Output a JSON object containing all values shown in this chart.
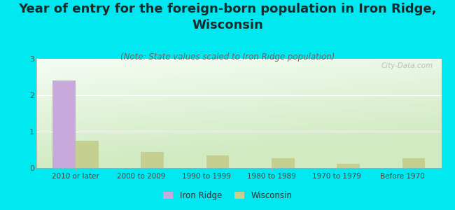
{
  "title": "Year of entry for the foreign-born population in Iron Ridge,\nWisconsin",
  "subtitle": "(Note: State values scaled to Iron Ridge population)",
  "categories": [
    "2010 or later",
    "2000 to 2009",
    "1990 to 1999",
    "1980 to 1989",
    "1970 to 1979",
    "Before 1970"
  ],
  "iron_ridge_values": [
    2.4,
    0,
    0,
    0,
    0,
    0
  ],
  "wisconsin_values": [
    0.75,
    0.45,
    0.35,
    0.27,
    0.12,
    0.27
  ],
  "iron_ridge_color": "#c9a8dc",
  "wisconsin_color": "#c5cf90",
  "background_color": "#00e8f0",
  "plot_bg_top_left": "#f0f8f0",
  "plot_bg_bottom_right": "#d0e8c0",
  "ylim": [
    0,
    3
  ],
  "yticks": [
    0,
    1,
    2,
    3
  ],
  "bar_width": 0.35,
  "title_fontsize": 13,
  "subtitle_fontsize": 8.5,
  "watermark": "City-Data.com",
  "legend_labels": [
    "Iron Ridge",
    "Wisconsin"
  ]
}
